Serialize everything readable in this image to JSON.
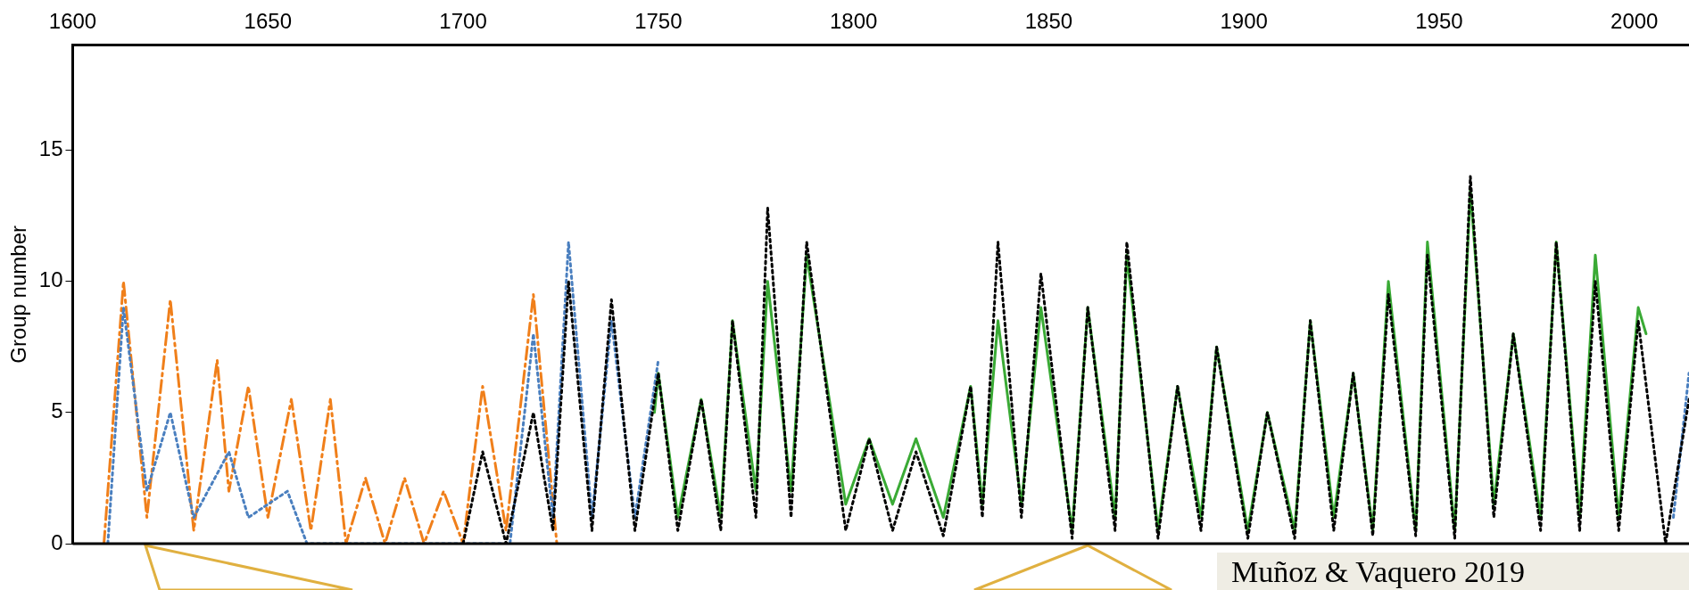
{
  "chart_data": {
    "type": "line",
    "ylabel": "Group number",
    "xlim": [
      1600,
      2014
    ],
    "xticks": [
      1600,
      1650,
      1700,
      1750,
      1800,
      1850,
      1900,
      1950,
      2000
    ],
    "ylim": [
      0,
      19
    ],
    "yticks": [
      0,
      5,
      10,
      15
    ],
    "grid": false,
    "marker": "none",
    "annotations": [
      "Muñoz & Vaquero 2019"
    ],
    "series": [
      {
        "color": "#f07f1a",
        "line_style": "dashed",
        "x": [
          1608,
          1613,
          1619,
          1625,
          1631,
          1637,
          1640,
          1645,
          1650,
          1656,
          1661,
          1666,
          1670,
          1675,
          1680,
          1685,
          1690,
          1695,
          1700,
          1705,
          1711,
          1718,
          1724
        ],
        "values": [
          0,
          10,
          1,
          9.3,
          0.5,
          7,
          2,
          6,
          1,
          5.5,
          0.5,
          5.5,
          0,
          2.5,
          0,
          2.5,
          0,
          2,
          0,
          6,
          0.5,
          9.5,
          0
        ]
      },
      {
        "color": "#4a7fbf",
        "line_style": "dotted",
        "x": [
          1609,
          1613,
          1619,
          1625,
          1631,
          1640,
          1645,
          1655,
          1660,
          1712,
          1718,
          1723,
          1727,
          1733,
          1738,
          1744,
          1750,
          1800,
          2010,
          2014
        ],
        "values": [
          0,
          9,
          2,
          5,
          1,
          3.5,
          1,
          2,
          0,
          0,
          8,
          1,
          11.5,
          1,
          8.5,
          1,
          7,
          null,
          1,
          6.5
        ]
      },
      {
        "color": "#3aaa35",
        "line_style": "solid",
        "x": [
          1749,
          1750,
          1755,
          1761,
          1766,
          1769,
          1775,
          1778,
          1784,
          1788,
          1798,
          1804,
          1810,
          1816,
          1823,
          1830,
          1833,
          1837,
          1843,
          1848,
          1856,
          1860,
          1867,
          1870,
          1878,
          1883,
          1889,
          1893,
          1901,
          1906,
          1913,
          1917,
          1923,
          1928,
          1933,
          1937,
          1944,
          1947,
          1954,
          1958,
          1964,
          1969,
          1976,
          1980,
          1986,
          1990,
          1996,
          2001,
          2003
        ],
        "values": [
          5,
          6.5,
          1,
          5.5,
          1,
          8.5,
          2,
          10,
          2,
          11,
          1.5,
          4,
          1.5,
          4,
          1,
          6,
          1.5,
          8.5,
          1.5,
          9,
          0.5,
          9,
          1,
          11,
          0.5,
          6,
          1,
          7.5,
          0.5,
          5,
          0.5,
          8.5,
          1,
          6.5,
          0.5,
          10,
          0.5,
          11.5,
          0.5,
          13.5,
          1.5,
          8,
          1,
          11.5,
          1,
          11,
          1,
          9,
          8
        ]
      },
      {
        "color": "#000000",
        "line_style": "dotted",
        "x": [
          1700,
          1705,
          1711,
          1718,
          1723,
          1727,
          1733,
          1738,
          1744,
          1750,
          1755,
          1761,
          1766,
          1769,
          1775,
          1778,
          1784,
          1788,
          1798,
          1804,
          1810,
          1816,
          1823,
          1830,
          1833,
          1837,
          1843,
          1848,
          1856,
          1860,
          1867,
          1870,
          1878,
          1883,
          1889,
          1893,
          1901,
          1906,
          1913,
          1917,
          1923,
          1928,
          1933,
          1937,
          1944,
          1947,
          1954,
          1958,
          1964,
          1969,
          1976,
          1980,
          1986,
          1990,
          1996,
          2001,
          2008,
          2014
        ],
        "values": [
          0,
          3.5,
          0,
          5,
          0.5,
          10,
          0.5,
          9.3,
          0.5,
          6.5,
          0.5,
          5.5,
          0.5,
          8.5,
          1,
          12.8,
          1,
          11.5,
          0.5,
          4,
          0.5,
          3.5,
          0.3,
          6,
          1,
          11.5,
          1,
          10.3,
          0.2,
          9,
          0.5,
          11.5,
          0.2,
          6,
          0.5,
          7.5,
          0.2,
          5,
          0.2,
          8.5,
          0.5,
          6.5,
          0.3,
          9.5,
          0.3,
          11,
          0.2,
          14,
          1,
          8,
          0.5,
          11.5,
          0.5,
          10,
          0.5,
          8.5,
          0,
          5.5
        ]
      }
    ]
  }
}
